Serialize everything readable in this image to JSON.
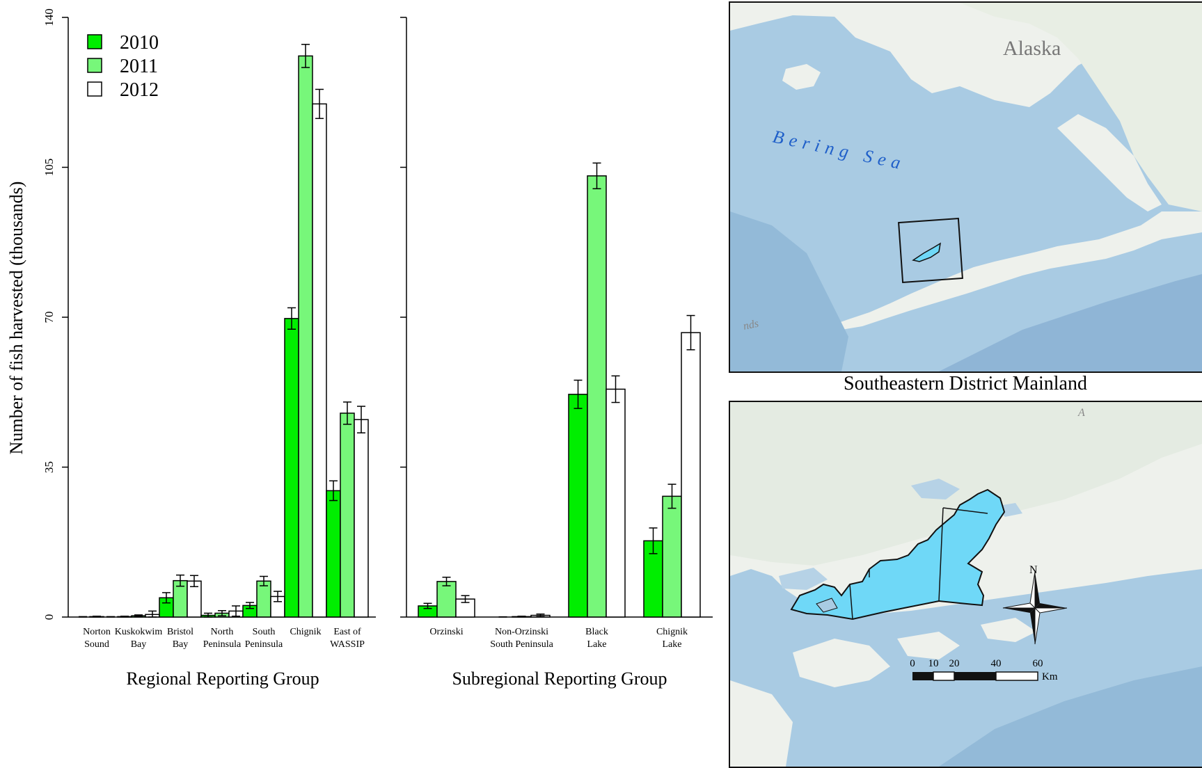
{
  "left_chart_panel": {
    "ylabel": "Number of fish harvested (thousands)",
    "xlabel": "Regional Reporting Group",
    "legend": [
      "2010",
      "2011",
      "2012"
    ]
  },
  "right_chart_panel": {
    "xlabel": "Subregional Reporting Group"
  },
  "colors": {
    "y2010": "#00ee00",
    "y2011": "#77f77a",
    "y2012": "#ffffff",
    "map_water": "#a9cbe3",
    "map_land": "#eef1ec",
    "district": "#6fd8f7"
  },
  "chart_data": [
    {
      "type": "bar",
      "xlabel": "Regional Reporting Group",
      "ylabel": "Number of fish harvested (thousands)",
      "ylim": [
        0,
        140
      ],
      "yticks": [
        0,
        35,
        70,
        105,
        140
      ],
      "categories": [
        [
          "Norton",
          "Sound"
        ],
        [
          "Kuskokwim",
          "Bay"
        ],
        [
          "Bristol",
          "Bay"
        ],
        [
          "North",
          "Peninsula"
        ],
        [
          "South",
          "Peninsula"
        ],
        [
          "Chignik",
          ""
        ],
        [
          "East of",
          "WASSIP"
        ]
      ],
      "series": [
        {
          "name": "2010",
          "values": [
            0.0,
            0.1,
            4.5,
            0.4,
            2.7,
            69.7,
            29.5
          ],
          "err": [
            0.1,
            0.1,
            1.2,
            0.5,
            0.7,
            2.5,
            2.3
          ]
        },
        {
          "name": "2011",
          "values": [
            0.1,
            0.3,
            8.5,
            0.9,
            8.4,
            131.0,
            47.6
          ],
          "err": [
            0.1,
            0.2,
            1.3,
            0.6,
            1.1,
            2.7,
            2.6
          ]
        },
        {
          "name": "2012",
          "values": [
            0.0,
            0.6,
            8.4,
            1.4,
            4.8,
            119.8,
            46.1
          ],
          "err": [
            0.1,
            0.8,
            1.3,
            1.2,
            1.2,
            3.4,
            3.1
          ]
        }
      ],
      "legend_position": "top-left",
      "grid": false
    },
    {
      "type": "bar",
      "xlabel": "Subregional Reporting Group",
      "ylim": [
        0,
        140
      ],
      "categories": [
        [
          "Orzinski",
          ""
        ],
        [
          "Non-Orzinski",
          "South Peninsula"
        ],
        [
          "Black",
          "Lake"
        ],
        [
          "Chignik",
          "Lake"
        ]
      ],
      "series": [
        {
          "name": "2010",
          "values": [
            2.6,
            0.0,
            52.0,
            17.8
          ],
          "err": [
            0.6,
            0.05,
            3.3,
            3.0
          ]
        },
        {
          "name": "2011",
          "values": [
            8.3,
            0.1,
            103.0,
            28.2
          ],
          "err": [
            1.0,
            0.1,
            3.0,
            2.8
          ]
        },
        {
          "name": "2012",
          "values": [
            4.2,
            0.4,
            53.2,
            66.4
          ],
          "err": [
            0.8,
            0.3,
            3.1,
            4.0
          ]
        }
      ],
      "grid": false
    }
  ],
  "map_top": {
    "place_label": "Alaska",
    "sea_label": "Bering Sea",
    "edge_fragment": "nds"
  },
  "map_caption": "Southeastern District Mainland",
  "map_bottom": {
    "north_label": "N",
    "scale_ticks": [
      "0",
      "10",
      "20",
      "40",
      "60"
    ],
    "scale_unit": "Km",
    "edge_fragment": "A"
  }
}
